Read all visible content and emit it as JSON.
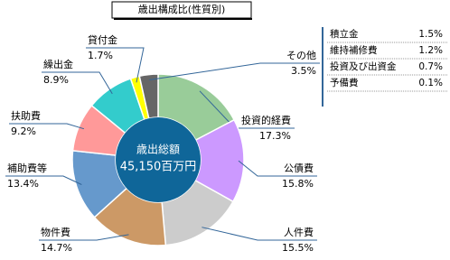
{
  "chart_data": {
    "type": "pie",
    "title": "歳出構成比(性質別)",
    "center_label": "歳出総額",
    "center_value": "45,150百万円",
    "categories": [
      "投資的経費",
      "公債費",
      "人件費",
      "物件費",
      "補助費等",
      "扶助費",
      "繰出金",
      "貸付金",
      "その他"
    ],
    "values": [
      17.3,
      15.8,
      15.5,
      14.7,
      13.4,
      9.2,
      8.9,
      1.7,
      3.5
    ],
    "value_labels": [
      "17.3%",
      "15.8%",
      "15.5%",
      "14.7%",
      "13.4%",
      "9.2%",
      "8.9%",
      "1.7%",
      "3.5%"
    ],
    "colors": [
      "#99cc99",
      "#cc99ff",
      "#cccccc",
      "#cc9966",
      "#6699cc",
      "#ff9999",
      "#33cccc",
      "#ffff00",
      "#666666"
    ]
  },
  "side_table": {
    "rows": [
      [
        "積立金",
        "1.5%"
      ],
      [
        "維持補修費",
        "1.2%"
      ],
      [
        "投資及び出資金",
        "0.7%"
      ],
      [
        "予備費",
        "0.1%"
      ]
    ]
  }
}
